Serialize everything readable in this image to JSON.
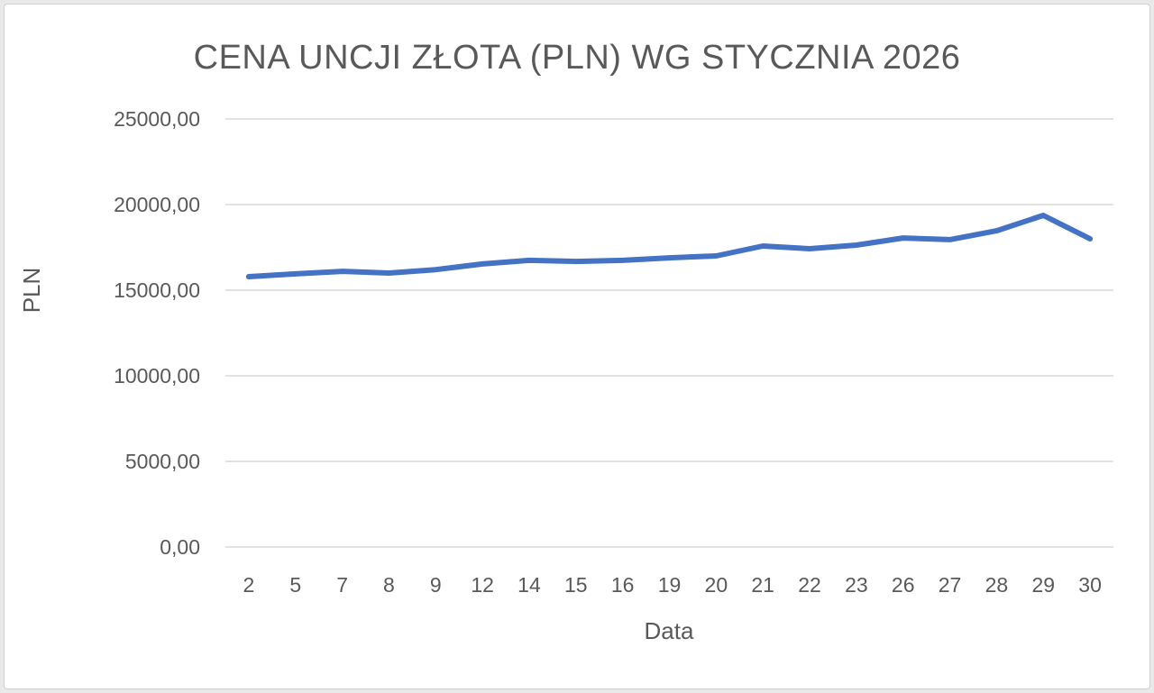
{
  "chart_data": {
    "type": "line",
    "title": "CENA UNCJI ZŁOTA (PLN) WG STYCZNIA 2026",
    "xlabel": "Data",
    "ylabel": "PLN",
    "ylim": [
      0,
      25000
    ],
    "yticks": [
      "0,00",
      "5000,00",
      "10000,00",
      "15000,00",
      "20000,00",
      "25000,00"
    ],
    "ytick_values": [
      0,
      5000,
      10000,
      15000,
      20000,
      25000
    ],
    "grid": true,
    "legend": "none",
    "categories": [
      "2",
      "5",
      "7",
      "8",
      "9",
      "12",
      "14",
      "15",
      "16",
      "19",
      "20",
      "21",
      "22",
      "23",
      "26",
      "27",
      "28",
      "29",
      "30"
    ],
    "series": [
      {
        "name": "PLN",
        "color": "#4472c4",
        "values": [
          15790,
          15950,
          16100,
          16000,
          16200,
          16530,
          16740,
          16680,
          16740,
          16890,
          17000,
          17580,
          17420,
          17630,
          18050,
          17950,
          18470,
          19370,
          18000
        ]
      }
    ]
  },
  "colors": {
    "line": "#4472c4",
    "grid": "#d9d9d9",
    "text": "#595959"
  }
}
